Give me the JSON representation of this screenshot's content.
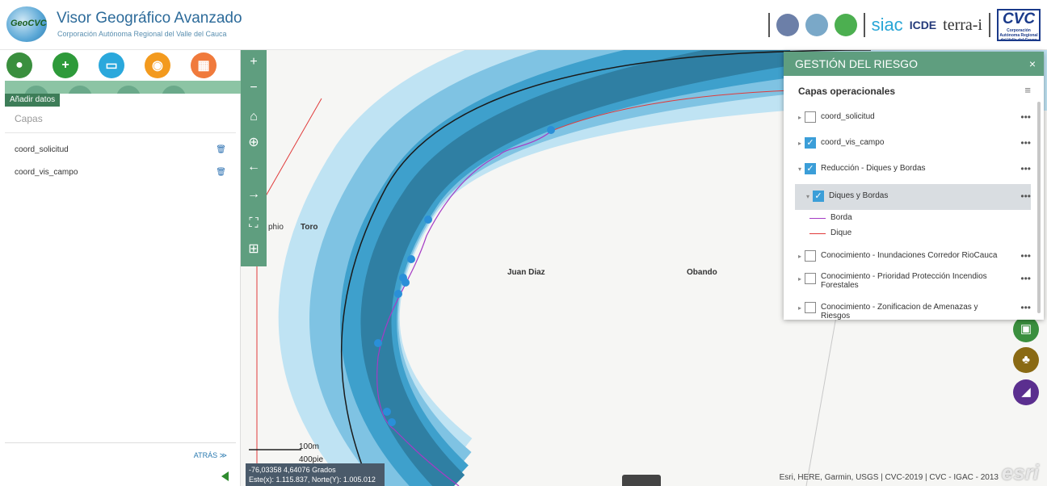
{
  "header": {
    "logo_text": "GeoCVC",
    "title": "Visor Geográfico Avanzado",
    "subtitle": "Corporación Autónoma Regional del Valle del Cauca",
    "partners": {
      "siac": "siac",
      "icde": "ICDE",
      "terra": "terra-i",
      "cvc": "CVC",
      "cvc_sub": "Corporación Autónoma Regional del Valle del Cauca"
    }
  },
  "left_panel": {
    "tools": [
      {
        "name": "location",
        "icon": "location-pin-icon",
        "color": "#3a8f3e",
        "glyph": "⬤"
      },
      {
        "name": "add",
        "icon": "plus-icon",
        "color": "#2e9a3a",
        "glyph": "+"
      },
      {
        "name": "measure",
        "icon": "ruler-icon",
        "color": "#2aa8dc",
        "glyph": "▭"
      },
      {
        "name": "geolocate",
        "icon": "map-marker-icon",
        "color": "#f39a1e",
        "glyph": "◉"
      },
      {
        "name": "calculator",
        "icon": "calculator-icon",
        "color": "#f07a3c",
        "glyph": "▦"
      }
    ],
    "add_data_label": "Añadir datos",
    "capas_title": "Capas",
    "layers": [
      {
        "label": "coord_solicitud",
        "icon": "trash-icon"
      },
      {
        "label": "coord_vis_campo",
        "icon": "trash-icon"
      }
    ],
    "back_label": "ATRÁS ≫"
  },
  "map": {
    "zoom_in": "+",
    "zoom_out": "−",
    "home": "⌂",
    "locate": "⊕",
    "back": "←",
    "forward": "→",
    "fullscreen": "⛶",
    "layers_btn": "⊞",
    "labels": {
      "toro_partial": "phio",
      "toro": "Toro",
      "juan_diaz": "Juan Diaz",
      "obando": "Obando"
    },
    "scale_top": "100m",
    "scale_bottom": "400pie",
    "coords_line1": "-76,03358 4,64076 Grados",
    "coords_line2": "Este(x): 1.115.837, Norte(Y): 1.005.012",
    "attribution": "Esri, HERE, Garmin, USGS | CVC-2019 | CVC - IGAC - 2013",
    "esri": "esri",
    "side_buttons": [
      {
        "icon": "image-icon",
        "color": "#3a8f3e"
      },
      {
        "icon": "plant-icon",
        "color": "#8a6a14"
      },
      {
        "icon": "map-icon",
        "color": "#5b2f8f"
      }
    ]
  },
  "risk_panel": {
    "title": "GESTIÓN DEL RIESGO",
    "close": "×",
    "operational_layers": "Capas operacionales",
    "rows": [
      {
        "label": "coord_solicitud",
        "checked": false,
        "expanded": false
      },
      {
        "label": "coord_vis_campo",
        "checked": true,
        "expanded": false
      },
      {
        "label": "Reducción - Diques y Bordas",
        "checked": true,
        "expanded": true
      },
      {
        "label": "Diques y Bordas",
        "checked": true,
        "expanded": true,
        "highlight": true
      },
      {
        "label": "Conocimiento - Inundaciones Corredor RioCauca",
        "checked": false,
        "expanded": false
      },
      {
        "label": "Conocimiento - Prioridad Protección Incendios Forestales",
        "checked": false,
        "expanded": false
      },
      {
        "label": "Conocimiento - Zonificacion de Amenazas y Riesgos",
        "checked": false,
        "expanded": false
      }
    ],
    "legend": [
      {
        "label": "Borda",
        "color": "#a53cc5"
      },
      {
        "label": "Dique",
        "color": "#e03a3a"
      }
    ],
    "more": "•••"
  }
}
